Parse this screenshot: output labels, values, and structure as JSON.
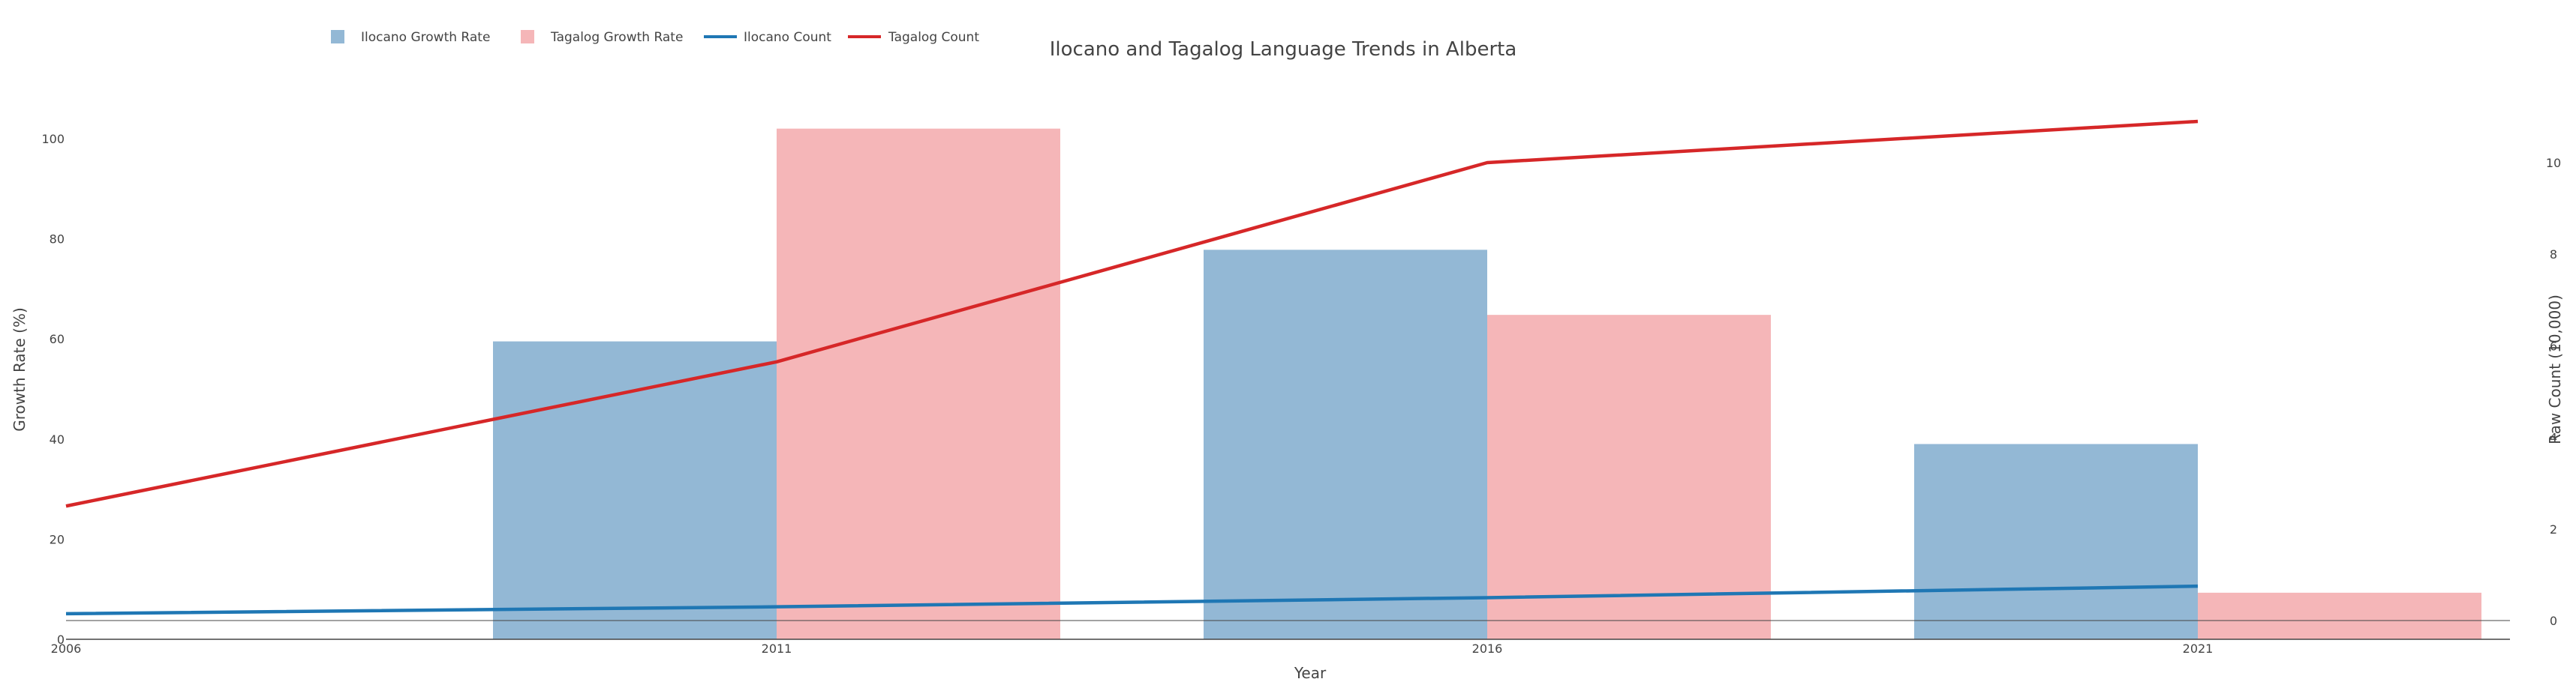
{
  "chart_data": {
    "type": "bar",
    "title": "Ilocano and Tagalog Language Trends in Alberta",
    "xlabel": "Year",
    "ylabel_left": "Growth Rate (%)",
    "ylabel_right": "Raw Count (10,000)",
    "x_ticks": [
      "2006",
      "2011",
      "2016",
      "2021"
    ],
    "y_left_ticks": [
      "0",
      "20",
      "40",
      "60",
      "80",
      "100"
    ],
    "y_right_ticks": [
      "0",
      "2",
      "4",
      "6",
      "8",
      "10"
    ],
    "y_left_range": [
      0,
      108
    ],
    "y_right_range": [
      -0.78,
      10.26
    ],
    "legend_position": "top-left",
    "bar_series": [
      {
        "name": "Ilocano Growth Rate",
        "color": "#93b8d5",
        "x": [
          "2011",
          "2016",
          "2021"
        ],
        "values": [
          59.5,
          77.8,
          39
        ]
      },
      {
        "name": "Tagalog Growth Rate",
        "color": "#f5b6b8",
        "x": [
          "2011",
          "2016",
          "2021"
        ],
        "values": [
          102,
          64.8,
          9.3
        ]
      }
    ],
    "line_series": [
      {
        "name": "Ilocano Count",
        "color": "#1f77b4",
        "x": [
          "2006",
          "2011",
          "2016",
          "2021"
        ],
        "values": [
          0.15,
          0.3,
          0.5,
          0.75
        ]
      },
      {
        "name": "Tagalog Count",
        "color": "#d62728",
        "x": [
          "2006",
          "2011",
          "2016",
          "2021"
        ],
        "values": [
          2.5,
          5.65,
          10.0,
          10.9
        ]
      }
    ]
  }
}
